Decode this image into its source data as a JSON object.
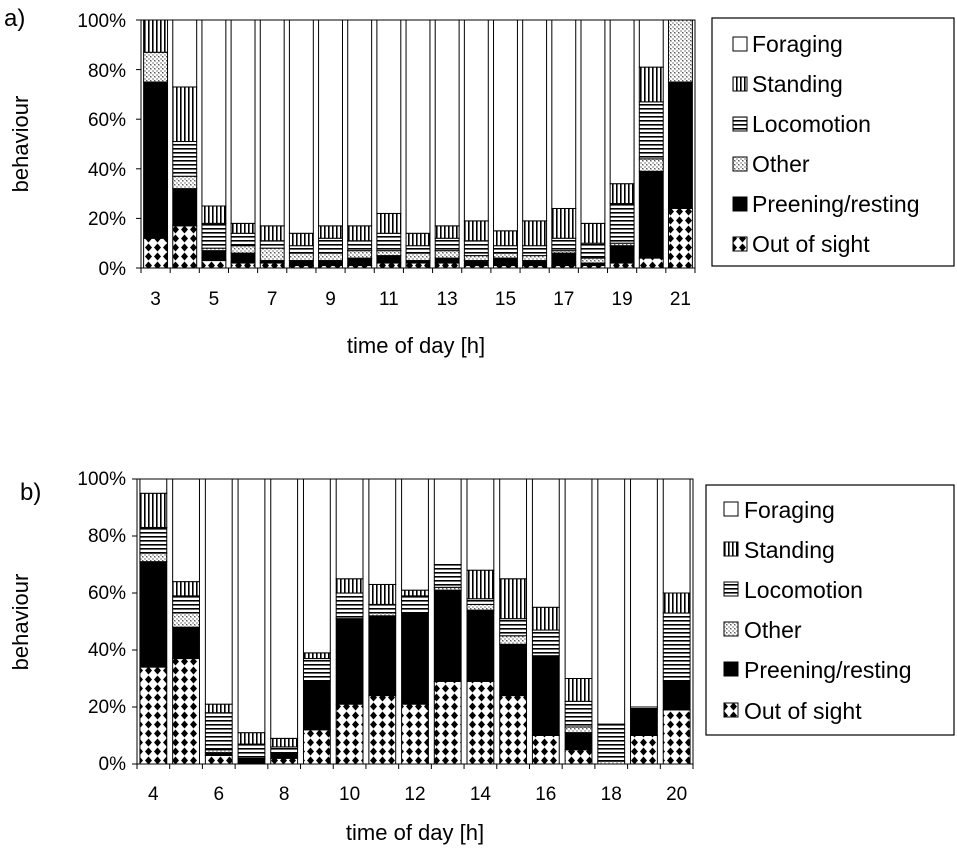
{
  "legend_entries": [
    "Foraging",
    "Standing",
    "Locomotion",
    "Other",
    "Preening/resting",
    "Out of sight"
  ],
  "chart_data": [
    {
      "type": "bar",
      "stacked": "percent",
      "panel_label": "a)",
      "xlabel": "time of day [h]",
      "ylabel": "behaviour",
      "ylim": [
        0,
        100
      ],
      "yticks": [
        "0%",
        "20%",
        "40%",
        "60%",
        "80%",
        "100%"
      ],
      "categories": [
        3,
        4,
        5,
        6,
        7,
        8,
        9,
        10,
        11,
        12,
        13,
        14,
        15,
        16,
        17,
        18,
        19,
        20,
        21
      ],
      "xtick_labels": [
        "3",
        "5",
        "7",
        "9",
        "11",
        "13",
        "15",
        "17",
        "19",
        "21"
      ],
      "legend_position": "right",
      "series": [
        {
          "name": "Out of sight",
          "values": [
            12,
            17,
            3,
            2,
            2,
            1,
            1,
            1,
            2,
            2,
            2,
            1,
            1,
            1,
            1,
            1,
            2,
            4,
            24
          ]
        },
        {
          "name": "Preening/resting",
          "values": [
            63,
            15,
            4,
            4,
            1,
            2,
            2,
            3,
            3,
            1,
            2,
            2,
            3,
            2,
            5,
            1,
            7,
            35,
            51
          ]
        },
        {
          "name": "Other",
          "values": [
            12,
            5,
            1,
            3,
            5,
            3,
            3,
            3,
            2,
            3,
            3,
            2,
            2,
            2,
            1,
            2,
            1,
            5,
            25
          ]
        },
        {
          "name": "Locomotion",
          "values": [
            0,
            14,
            10,
            5,
            3,
            3,
            6,
            4,
            7,
            3,
            5,
            6,
            3,
            4,
            5,
            6,
            16,
            23,
            0
          ]
        },
        {
          "name": "Standing",
          "values": [
            13,
            22,
            7,
            4,
            6,
            5,
            5,
            6,
            8,
            5,
            5,
            8,
            6,
            10,
            12,
            8,
            8,
            14,
            0
          ]
        },
        {
          "name": "Foraging",
          "values": [
            0,
            27,
            75,
            82,
            83,
            86,
            83,
            83,
            78,
            86,
            83,
            81,
            85,
            81,
            76,
            82,
            66,
            19,
            0
          ]
        }
      ]
    },
    {
      "type": "bar",
      "stacked": "percent",
      "panel_label": "b)",
      "xlabel": "time of day [h]",
      "ylabel": "behaviour",
      "ylim": [
        0,
        100
      ],
      "yticks": [
        "0%",
        "20%",
        "40%",
        "60%",
        "80%",
        "100%"
      ],
      "categories": [
        4,
        5,
        6,
        7,
        8,
        9,
        10,
        11,
        12,
        13,
        14,
        15,
        16,
        17,
        18,
        19,
        20
      ],
      "xtick_labels": [
        "4",
        "6",
        "8",
        "10",
        "12",
        "14",
        "16",
        "18",
        "20"
      ],
      "legend_position": "right",
      "series": [
        {
          "name": "Out of sight",
          "values": [
            34,
            37,
            3,
            0,
            2,
            12,
            21,
            24,
            21,
            29,
            29,
            24,
            10,
            5,
            0,
            10,
            19
          ]
        },
        {
          "name": "Preening/resting",
          "values": [
            37,
            11,
            1,
            2,
            2,
            17,
            30,
            28,
            32,
            32,
            25,
            18,
            28,
            6,
            0,
            9,
            10
          ]
        },
        {
          "name": "Other",
          "values": [
            3,
            5,
            1,
            0,
            0,
            0,
            0,
            1,
            0,
            1,
            2,
            3,
            0,
            2,
            1,
            0,
            0
          ]
        },
        {
          "name": "Locomotion",
          "values": [
            9,
            6,
            13,
            5,
            2,
            8,
            9,
            3,
            6,
            8,
            2,
            6,
            9,
            9,
            13,
            1,
            24
          ]
        },
        {
          "name": "Standing",
          "values": [
            12,
            5,
            3,
            4,
            3,
            2,
            5,
            7,
            2,
            0,
            10,
            14,
            8,
            8,
            0,
            0,
            7
          ]
        },
        {
          "name": "Foraging",
          "values": [
            5,
            36,
            79,
            89,
            91,
            61,
            35,
            37,
            39,
            30,
            32,
            35,
            45,
            70,
            86,
            80,
            40
          ]
        }
      ]
    }
  ]
}
